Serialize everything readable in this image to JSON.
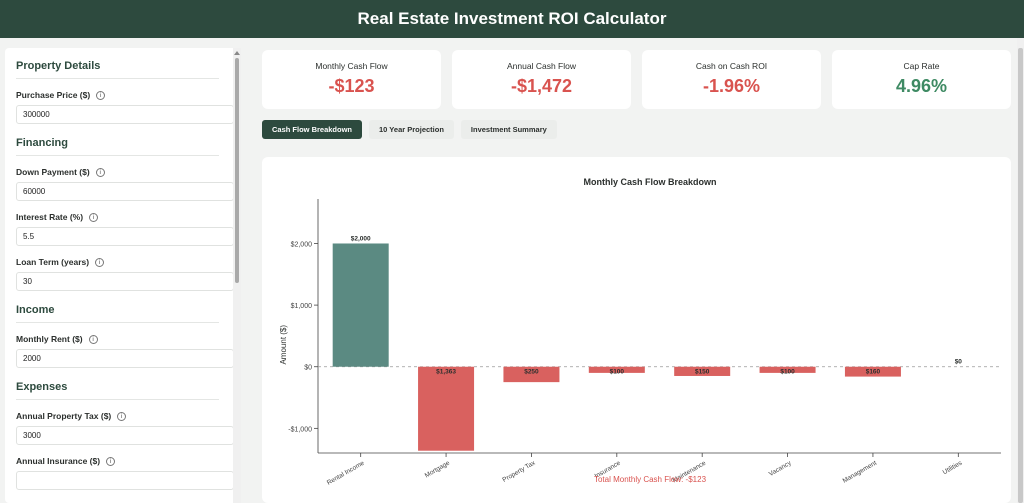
{
  "header": {
    "title": "Real Estate Investment ROI Calculator"
  },
  "sidebar": {
    "sections": {
      "property": {
        "title": "Property Details",
        "fields": [
          {
            "label": "Purchase Price ($)",
            "value": "300000"
          }
        ]
      },
      "financing": {
        "title": "Financing",
        "fields": [
          {
            "label": "Down Payment ($)",
            "value": "60000"
          },
          {
            "label": "Interest Rate (%)",
            "value": "5.5"
          },
          {
            "label": "Loan Term (years)",
            "value": "30"
          }
        ]
      },
      "income": {
        "title": "Income",
        "fields": [
          {
            "label": "Monthly Rent ($)",
            "value": "2000"
          }
        ]
      },
      "expenses": {
        "title": "Expenses",
        "fields": [
          {
            "label": "Annual Property Tax ($)",
            "value": "3000"
          },
          {
            "label": "Annual Insurance ($)",
            "value": ""
          }
        ]
      }
    },
    "info_glyph": "i"
  },
  "metrics": [
    {
      "label": "Monthly Cash Flow",
      "value": "-$123",
      "color": "#d9534f"
    },
    {
      "label": "Annual Cash Flow",
      "value": "-$1,472",
      "color": "#d9534f"
    },
    {
      "label": "Cash on Cash ROI",
      "value": "-1.96%",
      "color": "#d9534f"
    },
    {
      "label": "Cap Rate",
      "value": "4.96%",
      "color": "#3e8a63"
    }
  ],
  "tabs": [
    {
      "label": "Cash Flow Breakdown",
      "active": true
    },
    {
      "label": "10 Year Projection",
      "active": false
    },
    {
      "label": "Investment Summary",
      "active": false
    }
  ],
  "colors": {
    "accent": "#2d4a3e",
    "positive_bar": "#5b8a82",
    "negative_bar": "#d9615f",
    "negative_text": "#d9534f"
  },
  "chart_data": {
    "type": "bar",
    "title": "Monthly Cash Flow Breakdown",
    "ylabel": "Amount ($)",
    "categories": [
      "Rental Income",
      "Mortgage",
      "Property Tax",
      "Insurance",
      "Maintenance",
      "Vacancy",
      "Management",
      "Utilities"
    ],
    "values": [
      2000,
      -1363,
      -250,
      -100,
      -150,
      -100,
      -160,
      0
    ],
    "data_labels": [
      "$2,000",
      "$1,363",
      "$250",
      "$100",
      "$150",
      "$100",
      "$160",
      "$0"
    ],
    "ylim": [
      -1400,
      2300
    ],
    "yticks": [
      2000,
      1000,
      0,
      -1000
    ],
    "ytick_labels": [
      "$2,000",
      "$1,000",
      "$0",
      "-$1,000"
    ],
    "footer": "Total Monthly Cash Flow: -$123"
  }
}
